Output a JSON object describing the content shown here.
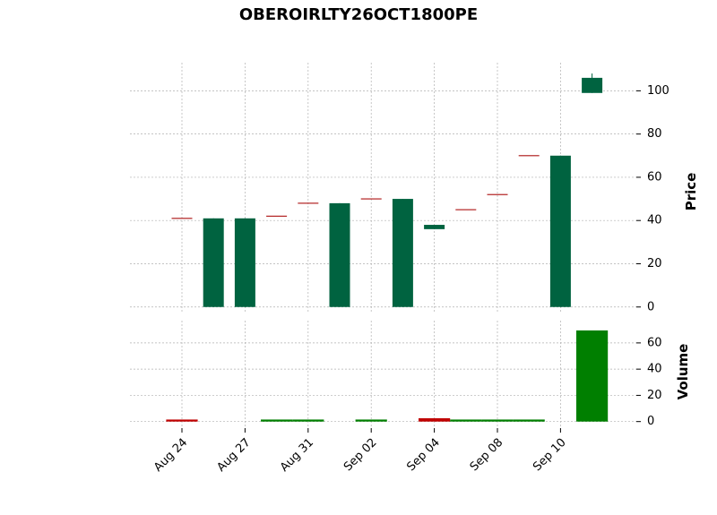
{
  "chart_data": {
    "type": "candlestick",
    "title": "OBEROIRLTY26OCT1800PE",
    "categories": [
      "Aug 24",
      null,
      "Aug 27",
      null,
      "Aug 31",
      null,
      "Sep 02",
      null,
      "Sep 04",
      null,
      "Sep 08",
      null,
      "Sep 10",
      null
    ],
    "open": [
      41,
      0,
      0,
      42,
      48,
      0,
      50,
      0,
      36,
      45,
      52,
      70,
      0,
      99
    ],
    "high": [
      41,
      41,
      41,
      42,
      48,
      48,
      50,
      50,
      38,
      45,
      52,
      70,
      70,
      108
    ],
    "low": [
      41,
      0,
      0,
      42,
      48,
      0,
      50,
      0,
      36,
      45,
      52,
      70,
      0,
      99
    ],
    "close": [
      41,
      41,
      41,
      42,
      48,
      48,
      50,
      50,
      38,
      45,
      52,
      70,
      70,
      106
    ],
    "candle_colors": [
      "#b22222",
      "#006340",
      "#006340",
      "#b22222",
      "#b22222",
      "#006340",
      "#b22222",
      "#006340",
      "#006340",
      "#b22222",
      "#b22222",
      "#b22222",
      "#006340",
      "#006340"
    ],
    "ylabel": "Price",
    "ylim": [
      -3,
      113
    ],
    "yticks": [
      0,
      20,
      40,
      60,
      80,
      100
    ],
    "volume": [
      1,
      0,
      0,
      1,
      1,
      0,
      1,
      0,
      2,
      1,
      1,
      1,
      0,
      69
    ],
    "volume_colors": [
      "#c00000",
      "#007f00",
      "#007f00",
      "#007f00",
      "#007f00",
      "#007f00",
      "#007f00",
      "#007f00",
      "#c00000",
      "#007f00",
      "#007f00",
      "#007f00",
      "#007f00",
      "#007f00"
    ],
    "y2label": "Volume",
    "y2lim": [
      -5,
      77
    ],
    "y2ticks": [
      0,
      20,
      40,
      60
    ],
    "grid": true
  }
}
